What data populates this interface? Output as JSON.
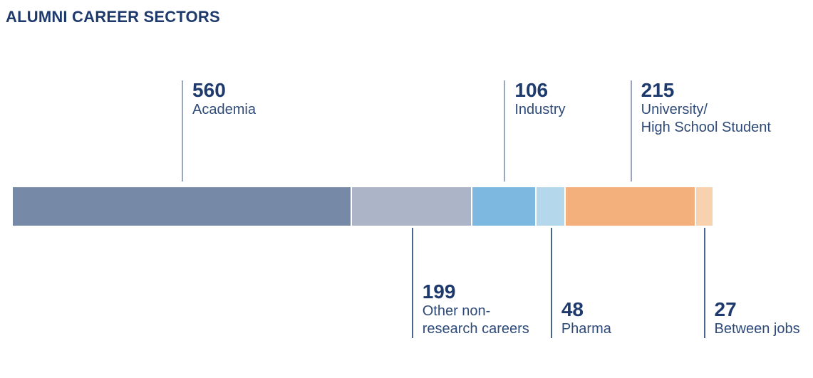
{
  "title": "ALUMNI CAREER SECTORS",
  "colors": {
    "title_text": "#1E3A6D",
    "number_text": "#1E3A6D",
    "label_text": "#2E4A78",
    "top_callout_line": "#9AA7C2",
    "bottom_callout_line": "#4A6490"
  },
  "chart_data": {
    "type": "bar",
    "subtype": "horizontal-stacked-single-bar",
    "title": "ALUMNI CAREER SECTORS",
    "total": 1155,
    "legend_position": "none",
    "grid": false,
    "segments": [
      {
        "name": "Academia",
        "value": 560,
        "color": "#7689A6",
        "callout_side": "top",
        "label_lines": [
          "Academia"
        ]
      },
      {
        "name": "Other non-research careers",
        "value": 199,
        "color": "#ACB5C7",
        "callout_side": "bottom",
        "label_lines": [
          "Other non-",
          "research careers"
        ]
      },
      {
        "name": "Industry",
        "value": 106,
        "color": "#7DB8E0",
        "callout_side": "top",
        "label_lines": [
          "Industry"
        ]
      },
      {
        "name": "Pharma",
        "value": 48,
        "color": "#B5D7EC",
        "callout_side": "bottom",
        "label_lines": [
          "Pharma"
        ]
      },
      {
        "name": "University/High School Student",
        "value": 215,
        "color": "#F3B07C",
        "callout_side": "top",
        "label_lines": [
          "University/",
          "High School Student"
        ]
      },
      {
        "name": "Between jobs",
        "value": 27,
        "color": "#F8D1AE",
        "callout_side": "bottom",
        "label_lines": [
          "Between jobs"
        ]
      }
    ]
  }
}
